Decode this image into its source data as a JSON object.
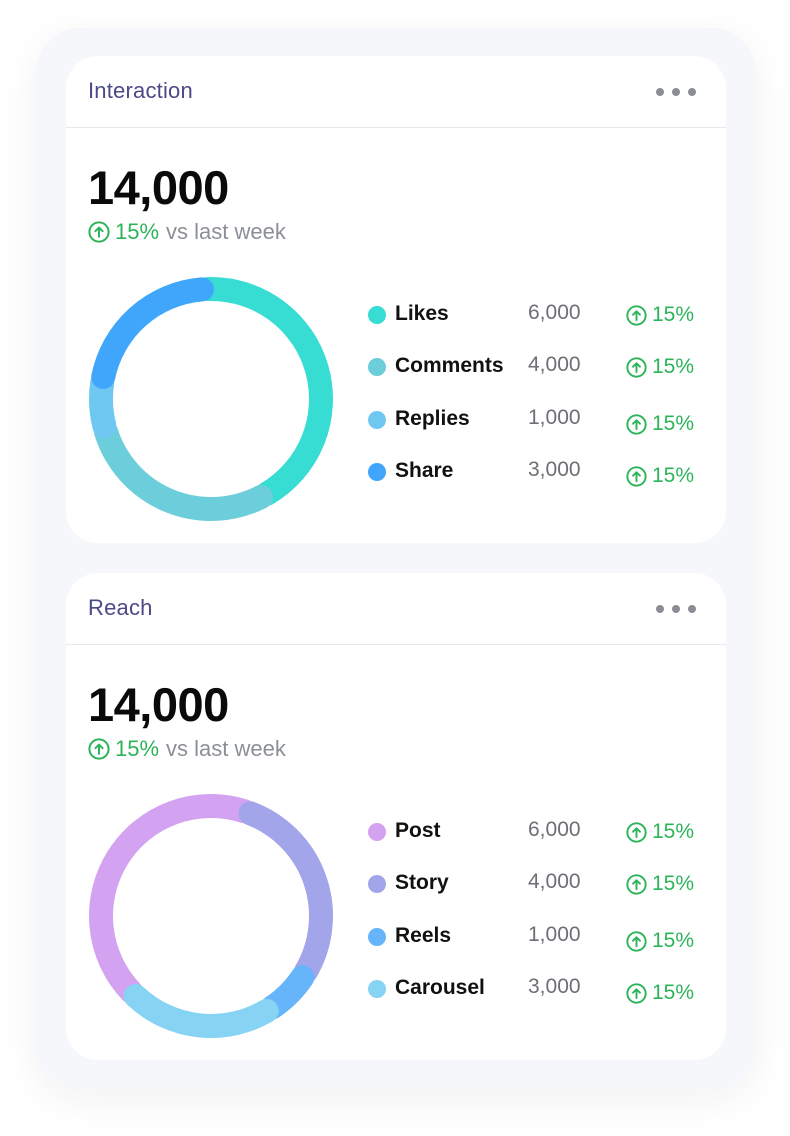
{
  "colors": {
    "positive": "#2db45a",
    "title": "#4b4a86"
  },
  "cards": [
    {
      "title": "Interaction",
      "total": "14,000",
      "change": {
        "percent": "15%",
        "label": "vs last week",
        "direction": "up",
        "icon": "arrow-up-circle-icon"
      },
      "menu_icon": "more-horizontal-icon",
      "chart_data": {
        "type": "pie",
        "style": "donut",
        "categories": [
          "Likes",
          "Comments",
          "Replies",
          "Share"
        ],
        "values": [
          6000,
          4000,
          1000,
          3000
        ],
        "colors": [
          "#37dcd3",
          "#6ccddb",
          "#6fc8f2",
          "#3fa6fb"
        ]
      },
      "legend": [
        {
          "name": "Likes",
          "value": "6,000",
          "change": "15%",
          "color": "#37dcd3"
        },
        {
          "name": "Comments",
          "value": "4,000",
          "change": "15%",
          "color": "#6ccddb"
        },
        {
          "name": "Replies",
          "value": "1,000",
          "change": "15%",
          "color": "#6fc8f2"
        },
        {
          "name": "Share",
          "value": "3,000",
          "change": "15%",
          "color": "#3fa6fb"
        }
      ]
    },
    {
      "title": "Reach",
      "total": "14,000",
      "change": {
        "percent": "15%",
        "label": "vs last week",
        "direction": "up",
        "icon": "arrow-up-circle-icon"
      },
      "menu_icon": "more-horizontal-icon",
      "chart_data": {
        "type": "pie",
        "style": "donut",
        "categories": [
          "Post",
          "Story",
          "Reels",
          "Carousel"
        ],
        "values": [
          6000,
          4000,
          1000,
          3000
        ],
        "colors": [
          "#d3a2f0",
          "#a2a5ea",
          "#66b5fb",
          "#86d3f3"
        ]
      },
      "legend": [
        {
          "name": "Post",
          "value": "6,000",
          "change": "15%",
          "color": "#d3a2f0"
        },
        {
          "name": "Story",
          "value": "4,000",
          "change": "15%",
          "color": "#a2a5ea"
        },
        {
          "name": "Reels",
          "value": "1,000",
          "change": "15%",
          "color": "#66b5fb"
        },
        {
          "name": "Carousel",
          "value": "3,000",
          "change": "15%",
          "color": "#86d3f3"
        }
      ]
    }
  ]
}
